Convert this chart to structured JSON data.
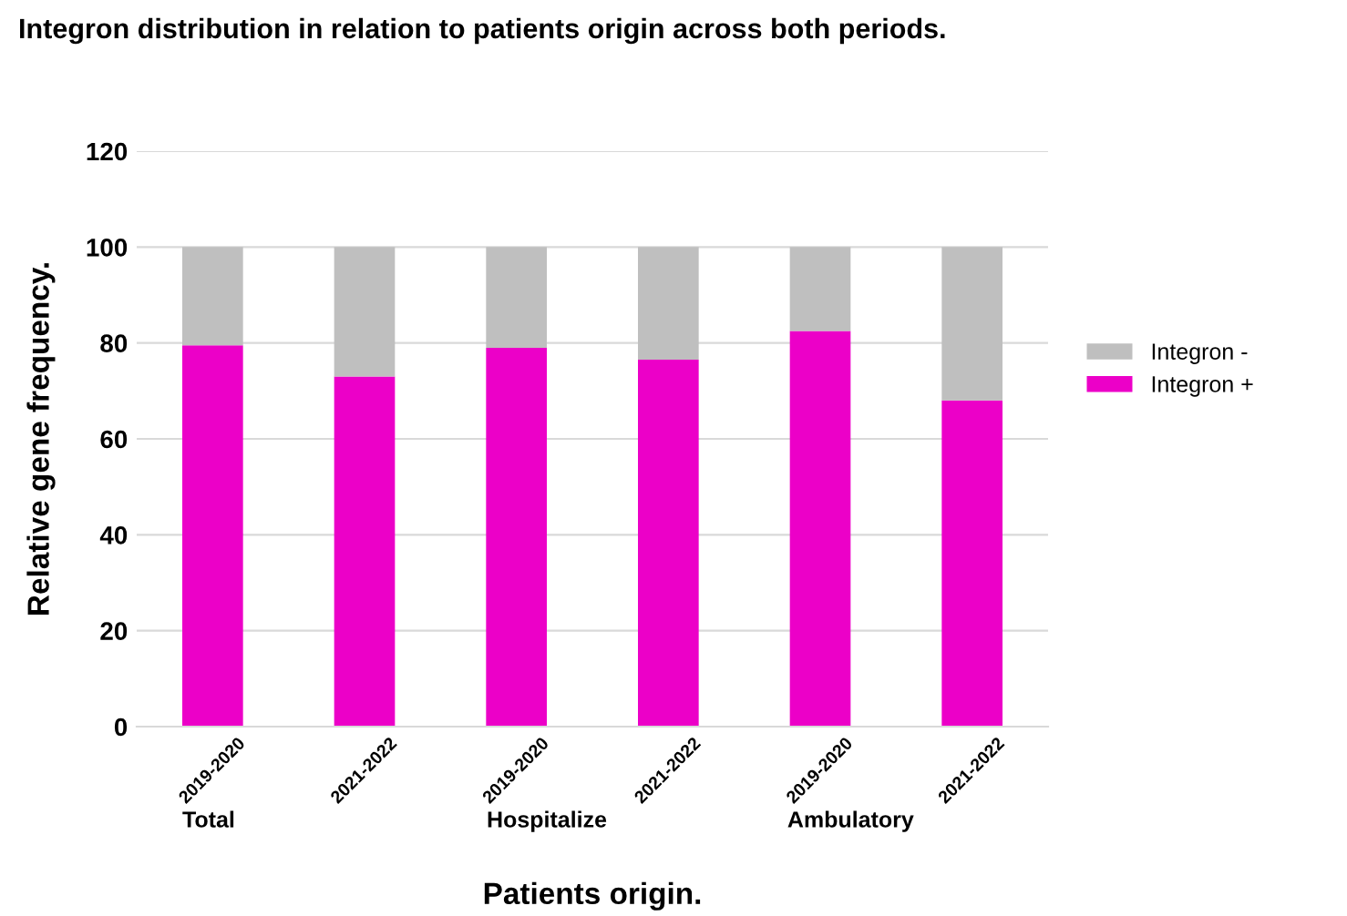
{
  "chart_data": {
    "type": "bar",
    "title": "Integron distribution in relation to patients origin across both periods.",
    "xlabel": "Patients origin.",
    "ylabel": "Relative gene frequency.",
    "categories": [
      "2019-2020",
      "2021-2022",
      "2019-2020",
      "2021-2022",
      "2019-2020",
      "2021-2022"
    ],
    "series": [
      {
        "name": "Integron +",
        "color": "#ec00c8",
        "values": [
          79.5,
          73,
          79,
          76.5,
          82.5,
          68
        ]
      },
      {
        "name": "Integron -",
        "color": "#bfbfbf",
        "values": [
          20.5,
          27,
          21,
          23.5,
          17.5,
          32
        ]
      }
    ],
    "stacked": true,
    "ylim": [
      0,
      120
    ],
    "yticks": [
      0,
      20,
      40,
      60,
      80,
      100,
      120
    ],
    "grid": "y",
    "legend": "right",
    "annotations": [
      "Total",
      "Hospitalize",
      "Ambulatory"
    ]
  }
}
